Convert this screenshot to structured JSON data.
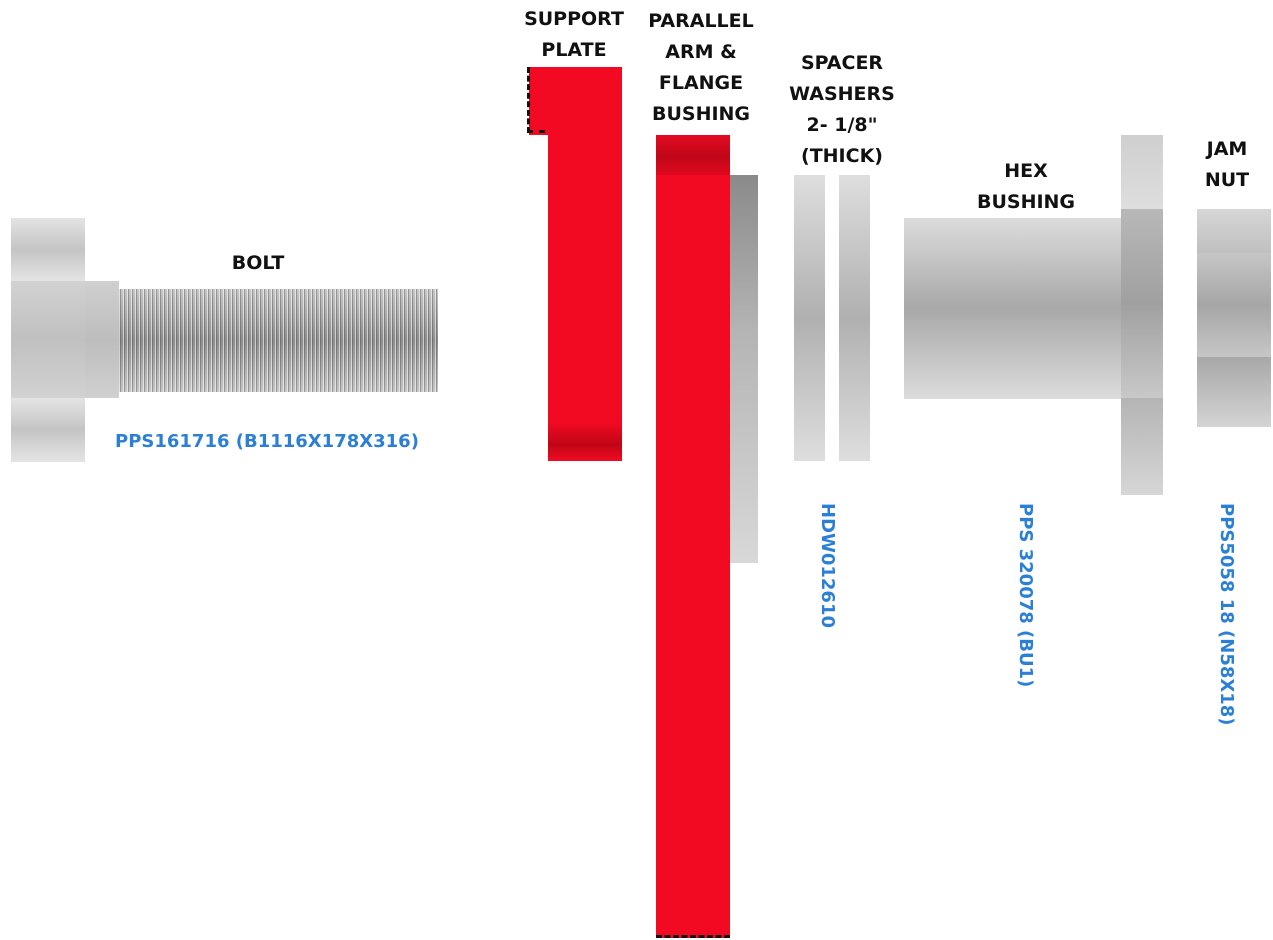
{
  "labels": {
    "support_plate": "SUPPORT\nPLATE",
    "parallel_arm": "PARALLEL\nARM &\nFLANGE\nBUSHING",
    "spacer_washers": "SPACER\nWASHERS\n2- 1/8\"\n(THICK)",
    "hex_bushing": "HEX\nBUSHING",
    "jam_nut": "JAM\nNUT",
    "bolt": "BOLT"
  },
  "part_numbers": {
    "bolt": "PPS161716 (B1116X178X316)",
    "spacer_washers": "HDW012610",
    "hex_bushing": "PPS 320078 (BU1)",
    "jam_nut": "PPS5058 18 (N58X18)"
  },
  "colors": {
    "part_red": "#f20a23",
    "part_number_blue": "#2c7fd6"
  }
}
